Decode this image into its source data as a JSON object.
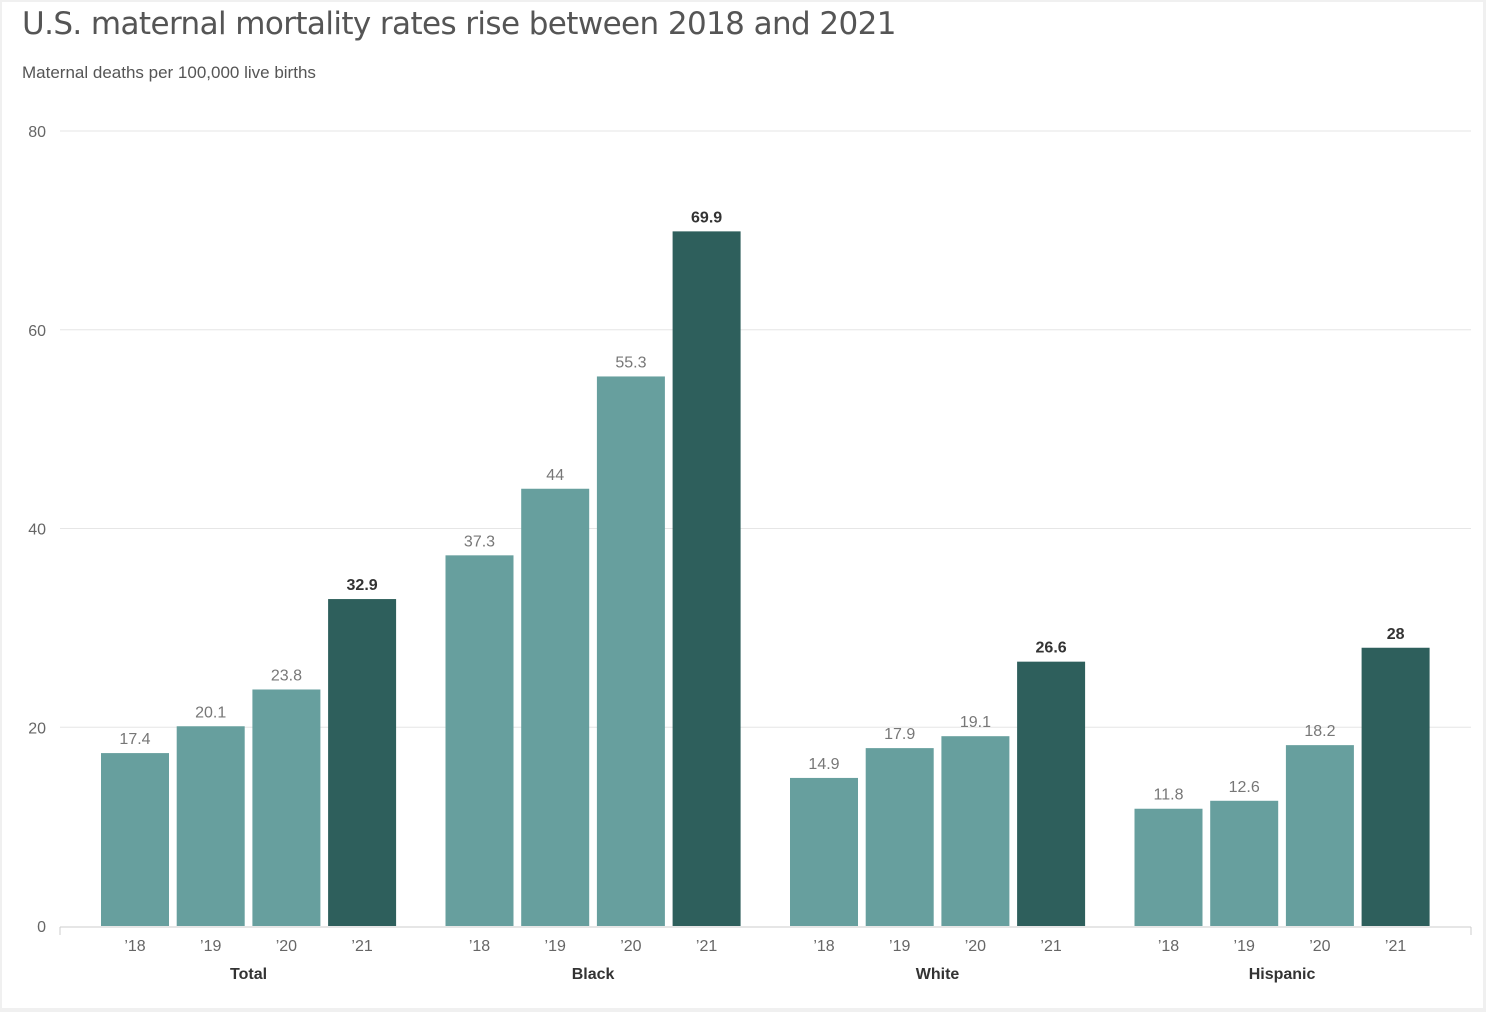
{
  "title": "U.S. maternal mortality rates rise between 2018 and 2021",
  "subtitle": "Maternal deaths per 100,000 live births",
  "colors": {
    "bar_light": "#679f9e",
    "bar_dark": "#2e5f5c",
    "gridline": "#e6e6e6",
    "axis_text": "#666666",
    "label_light": "#777777",
    "label_dark": "#333333"
  },
  "chart_data": {
    "type": "bar",
    "title": "U.S. maternal mortality rates rise between 2018 and 2021",
    "subtitle": "Maternal deaths per 100,000 live births",
    "xlabel": "",
    "ylabel": "Maternal deaths per 100,000 live births",
    "ylim": [
      0,
      80
    ],
    "yticks": [
      0,
      20,
      40,
      60,
      80
    ],
    "grid": true,
    "groups": [
      "Total",
      "Black",
      "White",
      "Hispanic"
    ],
    "categories": [
      "’18",
      "’19",
      "’20",
      "’21"
    ],
    "series": [
      {
        "name": "Total",
        "values": [
          17.4,
          20.1,
          23.8,
          32.9
        ]
      },
      {
        "name": "Black",
        "values": [
          37.3,
          44,
          55.3,
          69.9
        ]
      },
      {
        "name": "White",
        "values": [
          14.9,
          17.9,
          19.1,
          26.6
        ]
      },
      {
        "name": "Hispanic",
        "values": [
          11.8,
          12.6,
          18.2,
          28
        ]
      }
    ],
    "highlight_category": "’21"
  }
}
